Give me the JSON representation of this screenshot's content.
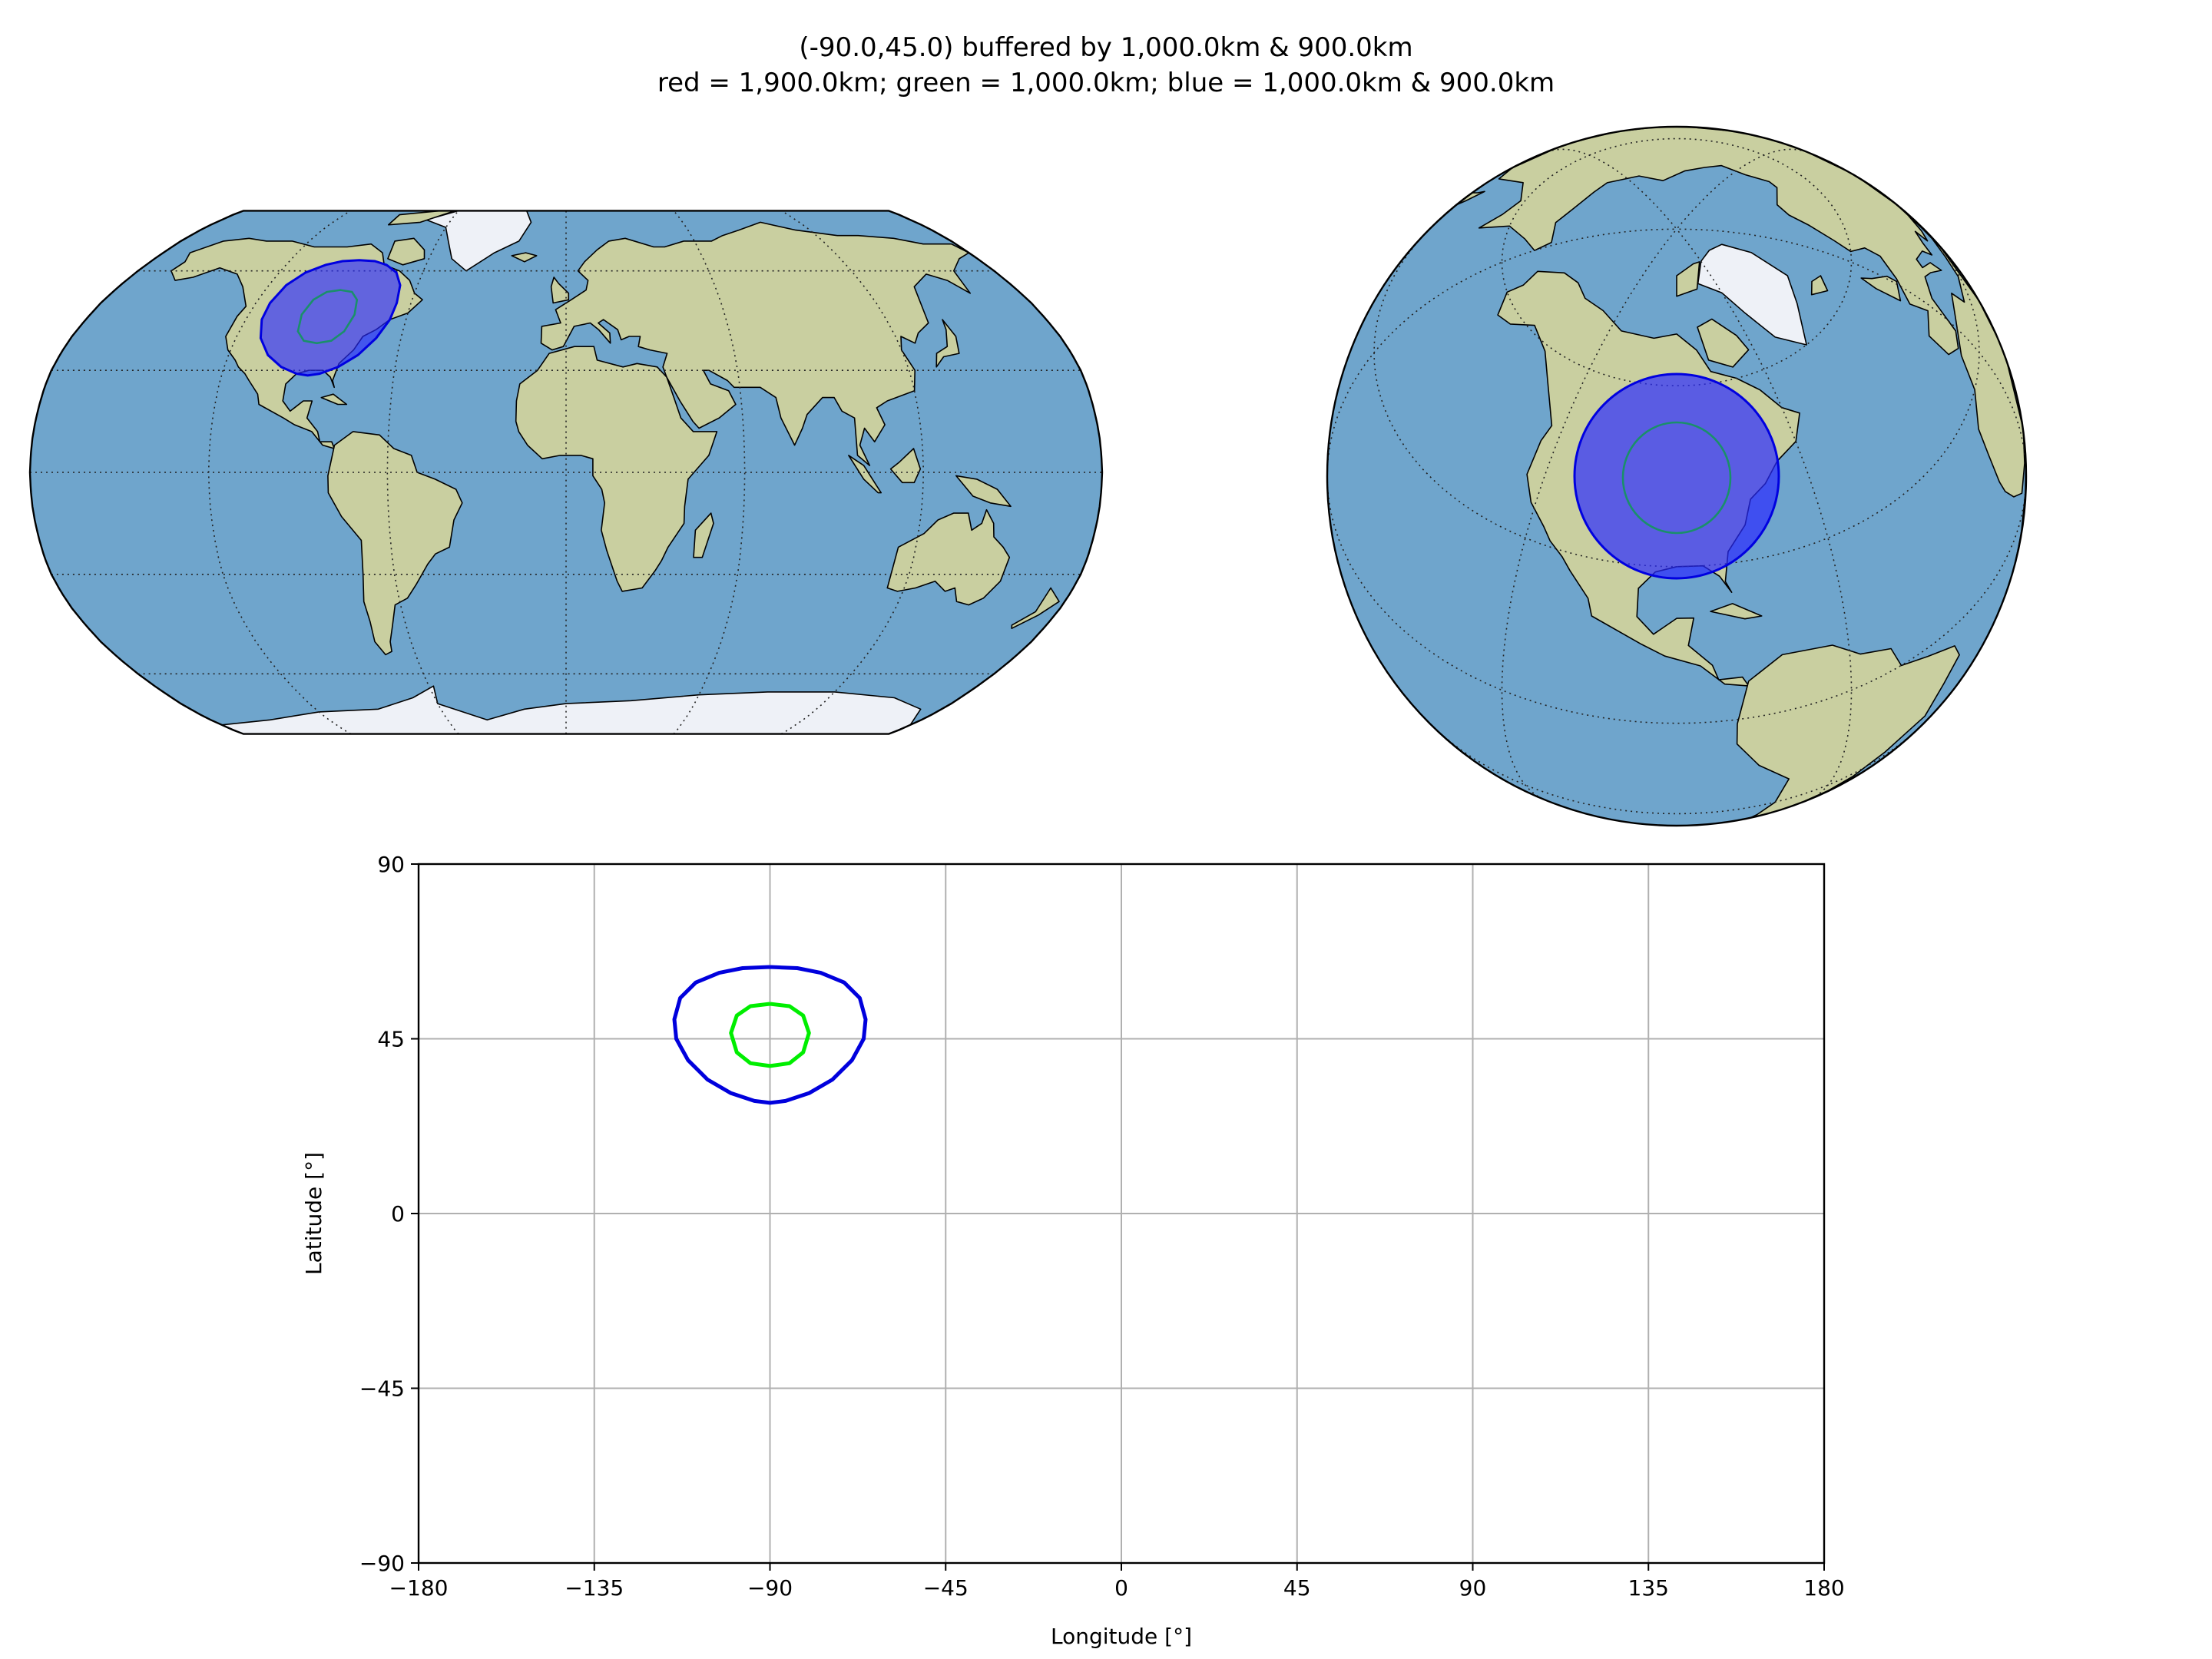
{
  "figure": {
    "title_line1": "(-90.0,45.0) buffered by 1,000.0km & 900.0km",
    "title_line2": "red = 1,900.0km; green = 1,000.0km; blue = 1,000.0km & 900.0km"
  },
  "colors": {
    "ocean": "#6fa5cc",
    "land": "#c9cfa0",
    "ice": "#eef1f7",
    "coast": "#000000",
    "buffer_fill": "#2b2bff",
    "buffer_edge": "#0000e0",
    "inner_ring": "#1a8f6a",
    "green_line": "#00ee00",
    "blue_line": "#0000dd",
    "grid": "#b0b0b0"
  },
  "maps": [
    {
      "projection": "robinson",
      "center_lon": 0,
      "graticule": "dotted"
    },
    {
      "projection": "orthographic",
      "center_lon": -90,
      "center_lat": 45,
      "graticule": "dotted"
    }
  ],
  "chart_data": {
    "type": "line",
    "xlabel": "Longitude [°]",
    "ylabel": "Latitude [°]",
    "xlim": [
      -180,
      180
    ],
    "ylim": [
      -90,
      90
    ],
    "xticks": [
      -180,
      -135,
      -90,
      -45,
      0,
      45,
      90,
      135,
      180
    ],
    "yticks": [
      -90,
      -45,
      0,
      45,
      90
    ],
    "xtick_labels": [
      "−180",
      "−135",
      "−90",
      "−45",
      "0",
      "45",
      "90",
      "135",
      "180"
    ],
    "ytick_labels": [
      "−90",
      "−45",
      "0",
      "45",
      "90"
    ],
    "grid": true,
    "series": [
      {
        "color": "blue",
        "x": [
          -90,
          -83,
          -77,
          -71,
          -67,
          -65.5,
          -66,
          -69,
          -74,
          -80,
          -86,
          -90,
          -94,
          -100,
          -106,
          -111,
          -114,
          -114.5,
          -113,
          -109,
          -103,
          -97,
          -90
        ],
        "y": [
          63.5,
          63.2,
          62,
          59.5,
          55.5,
          50,
          45,
          39.5,
          34.5,
          31,
          29,
          28.5,
          29,
          31,
          34.5,
          39.5,
          45,
          50,
          55.5,
          59.5,
          62,
          63.2,
          63.5
        ]
      },
      {
        "color": "lime",
        "x": [
          -90,
          -85,
          -81.5,
          -80,
          -81.5,
          -85,
          -90,
          -95,
          -98.5,
          -100,
          -98.5,
          -95,
          -90
        ],
        "y": [
          54,
          53.4,
          51,
          46.5,
          41.5,
          38.7,
          38,
          38.7,
          41.5,
          46.5,
          51,
          53.4,
          54
        ]
      }
    ]
  }
}
